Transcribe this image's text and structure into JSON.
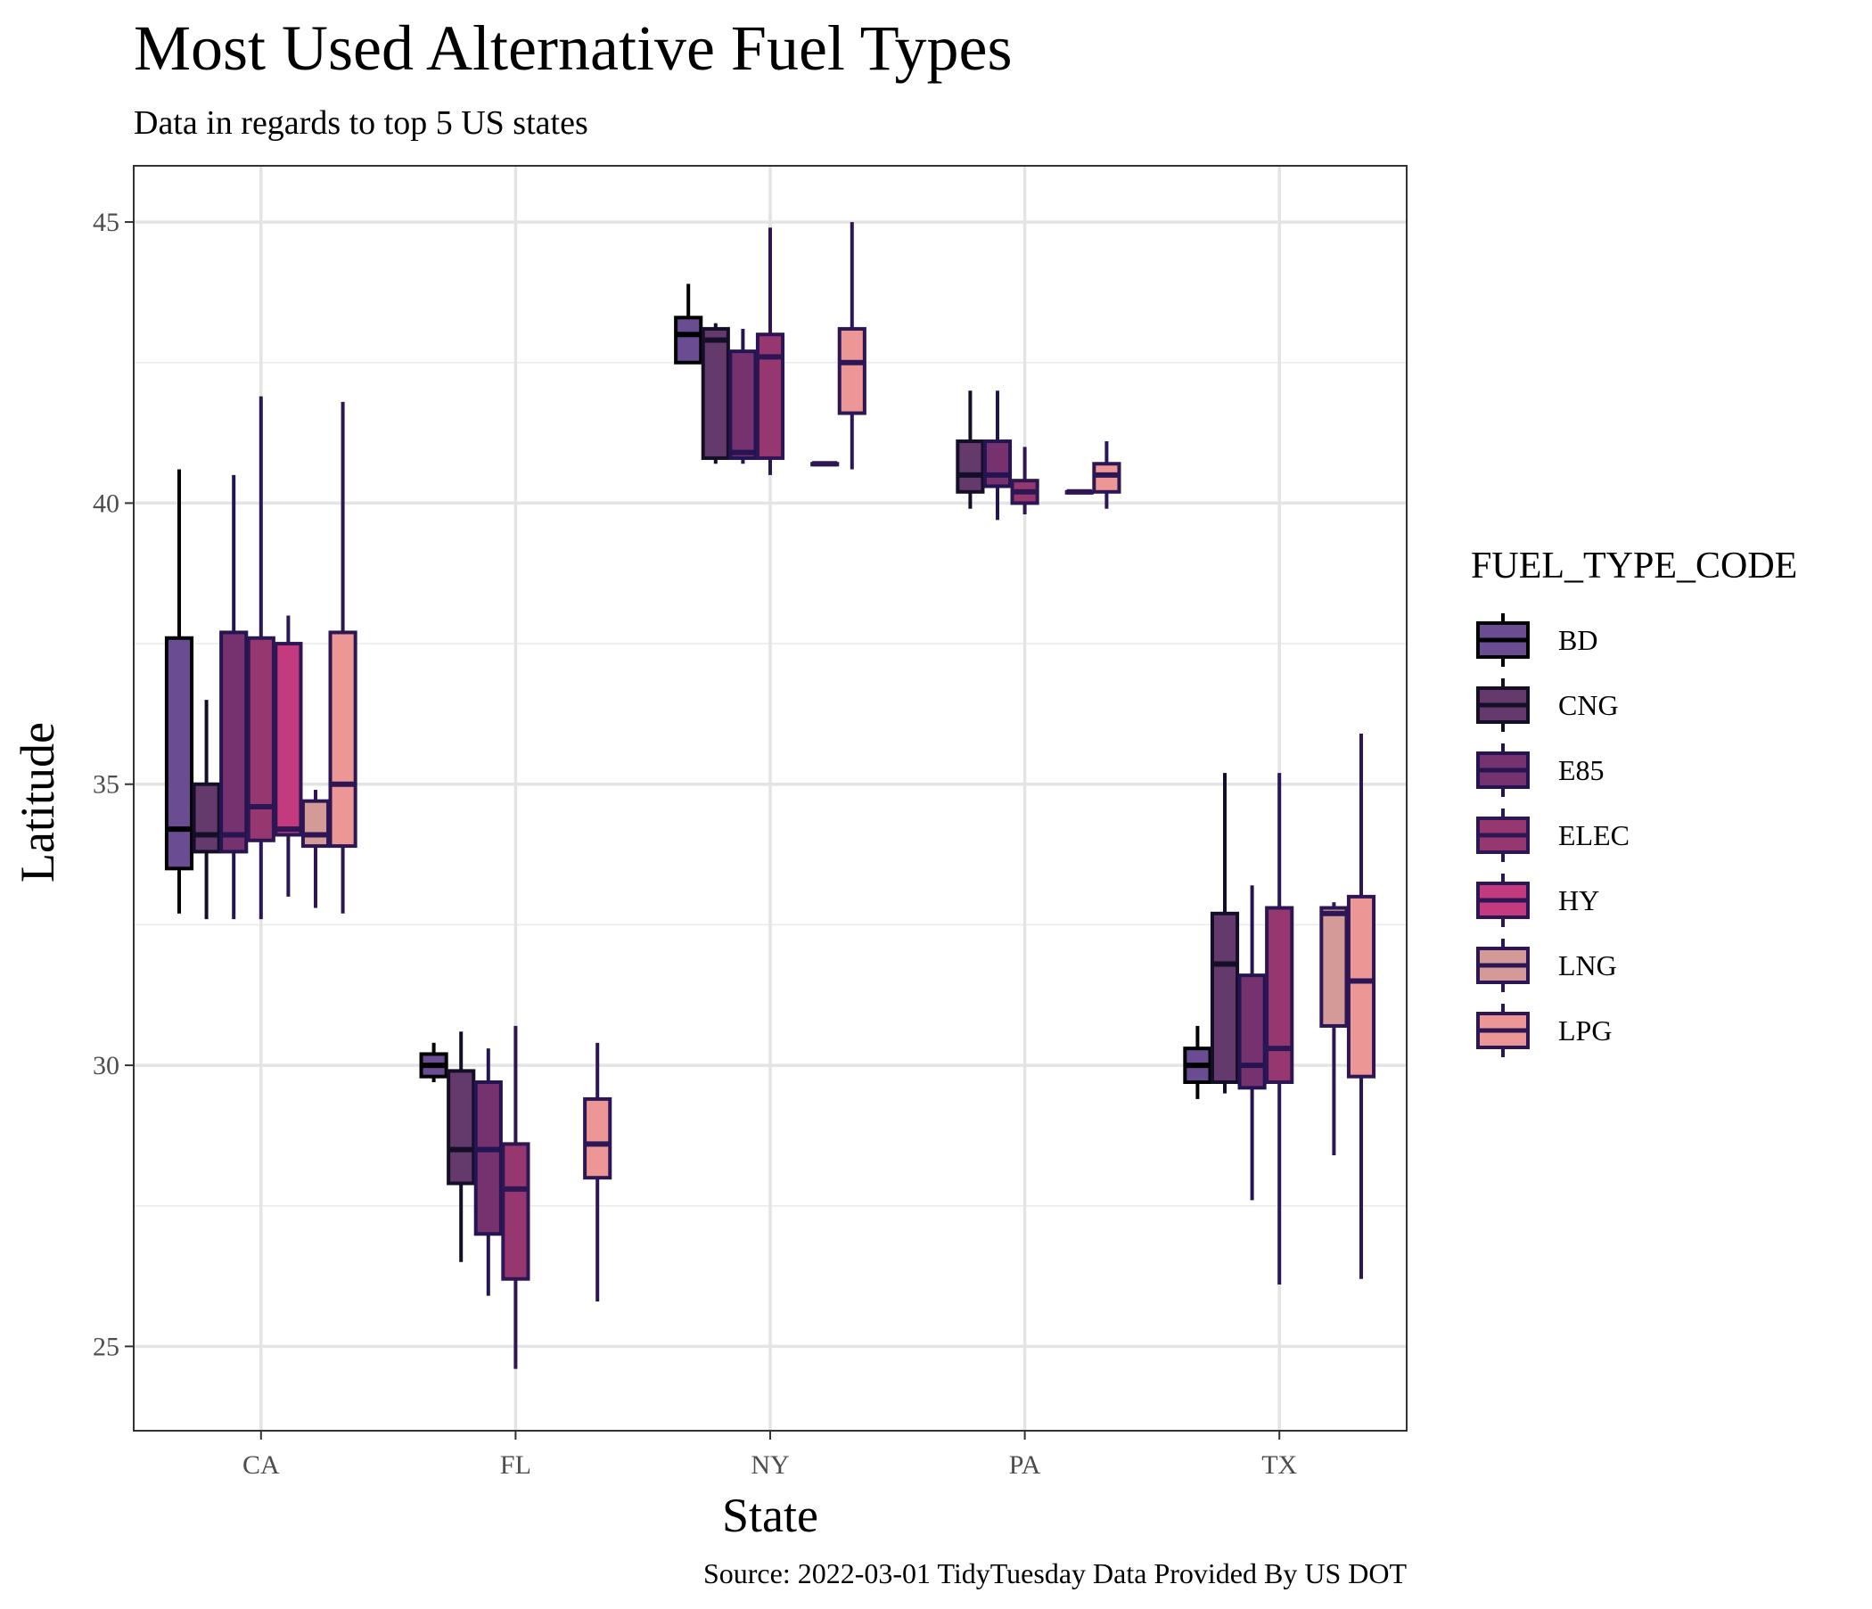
{
  "chart_data": {
    "type": "boxplot",
    "title": "Most Used Alternative Fuel Types",
    "subtitle": "Data in regards to top 5 US states",
    "caption": "Source: 2022-03-01 TidyTuesday Data Provided By US DOT",
    "xlabel": "State",
    "ylabel": "Latitude",
    "ylim": [
      23.5,
      46.0
    ],
    "y_ticks": [
      25,
      30,
      35,
      40,
      45
    ],
    "grid": true,
    "legend_position": "right",
    "legend_title": "FUEL_TYPE_CODE",
    "categories": [
      "CA",
      "FL",
      "NY",
      "PA",
      "TX"
    ],
    "series": [
      {
        "name": "BD",
        "fill": "#6A4C93",
        "stroke": "#000000",
        "boxes": [
          {
            "category": "CA",
            "min": 32.7,
            "q1": 33.5,
            "median": 34.2,
            "q3": 37.6,
            "max": 40.6
          },
          {
            "category": "FL",
            "min": 29.7,
            "q1": 29.8,
            "median": 30.0,
            "q3": 30.2,
            "max": 30.4
          },
          {
            "category": "NY",
            "min": 42.5,
            "q1": 42.5,
            "median": 43.0,
            "q3": 43.3,
            "max": 43.9
          },
          {
            "category": "TX",
            "min": 29.4,
            "q1": 29.7,
            "median": 30.0,
            "q3": 30.3,
            "max": 30.7
          }
        ]
      },
      {
        "name": "CNG",
        "fill": "#633A6B",
        "stroke": "#140E27",
        "boxes": [
          {
            "category": "CA",
            "min": 32.6,
            "q1": 33.8,
            "median": 34.1,
            "q3": 35.0,
            "max": 36.5
          },
          {
            "category": "FL",
            "min": 26.5,
            "q1": 27.9,
            "median": 28.5,
            "q3": 29.9,
            "max": 30.6
          },
          {
            "category": "NY",
            "min": 40.7,
            "q1": 40.8,
            "median": 42.9,
            "q3": 43.1,
            "max": 43.2
          },
          {
            "category": "PA",
            "min": 39.9,
            "q1": 40.2,
            "median": 40.5,
            "q3": 41.1,
            "max": 42.0
          },
          {
            "category": "TX",
            "min": 29.5,
            "q1": 29.7,
            "median": 31.8,
            "q3": 32.7,
            "max": 35.2
          }
        ]
      },
      {
        "name": "E85",
        "fill": "#75326E",
        "stroke": "#241452",
        "boxes": [
          {
            "category": "CA",
            "min": 32.6,
            "q1": 33.8,
            "median": 34.1,
            "q3": 37.7,
            "max": 40.5
          },
          {
            "category": "FL",
            "min": 25.9,
            "q1": 27.0,
            "median": 28.5,
            "q3": 29.7,
            "max": 30.3
          },
          {
            "category": "NY",
            "min": 40.7,
            "q1": 40.8,
            "median": 40.9,
            "q3": 42.7,
            "max": 43.1
          },
          {
            "category": "PA",
            "min": 39.7,
            "q1": 40.3,
            "median": 40.5,
            "q3": 41.1,
            "max": 42.0
          },
          {
            "category": "TX",
            "min": 27.6,
            "q1": 29.6,
            "median": 30.0,
            "q3": 31.6,
            "max": 33.2
          }
        ]
      },
      {
        "name": "ELEC",
        "fill": "#96386F",
        "stroke": "#2C1654",
        "boxes": [
          {
            "category": "CA",
            "min": 32.6,
            "q1": 34.0,
            "median": 34.6,
            "q3": 37.6,
            "max": 41.9
          },
          {
            "category": "FL",
            "min": 24.6,
            "q1": 26.2,
            "median": 27.8,
            "q3": 28.6,
            "max": 30.7
          },
          {
            "category": "NY",
            "min": 40.5,
            "q1": 40.8,
            "median": 42.6,
            "q3": 43.0,
            "max": 44.9
          },
          {
            "category": "PA",
            "min": 39.8,
            "q1": 40.0,
            "median": 40.2,
            "q3": 40.4,
            "max": 41.0
          },
          {
            "category": "TX",
            "min": 26.1,
            "q1": 29.7,
            "median": 30.3,
            "q3": 32.8,
            "max": 35.2
          }
        ]
      },
      {
        "name": "HY",
        "fill": "#C43A7E",
        "stroke": "#2C1654",
        "boxes": [
          {
            "category": "CA",
            "min": 33.0,
            "q1": 34.1,
            "median": 34.2,
            "q3": 37.5,
            "max": 38.0
          }
        ]
      },
      {
        "name": "LNG",
        "fill": "#D39A98",
        "stroke": "#2C1654",
        "boxes": [
          {
            "category": "CA",
            "min": 32.8,
            "q1": 33.9,
            "median": 34.1,
            "q3": 34.7,
            "max": 34.9
          },
          {
            "category": "NY",
            "min": 40.7,
            "q1": 40.7,
            "median": 40.7,
            "q3": 40.7,
            "max": 40.7
          },
          {
            "category": "PA",
            "min": 40.2,
            "q1": 40.2,
            "median": 40.2,
            "q3": 40.2,
            "max": 40.2
          },
          {
            "category": "TX",
            "min": 28.4,
            "q1": 30.7,
            "median": 32.7,
            "q3": 32.8,
            "max": 32.9
          }
        ]
      },
      {
        "name": "LPG",
        "fill": "#EC9696",
        "stroke": "#2C1654",
        "boxes": [
          {
            "category": "CA",
            "min": 32.7,
            "q1": 33.9,
            "median": 35.0,
            "q3": 37.7,
            "max": 41.8
          },
          {
            "category": "FL",
            "min": 25.8,
            "q1": 28.0,
            "median": 28.6,
            "q3": 29.4,
            "max": 30.4
          },
          {
            "category": "NY",
            "min": 40.6,
            "q1": 41.6,
            "median": 42.5,
            "q3": 43.1,
            "max": 45.0
          },
          {
            "category": "PA",
            "min": 39.9,
            "q1": 40.2,
            "median": 40.5,
            "q3": 40.7,
            "max": 41.1
          },
          {
            "category": "TX",
            "min": 26.2,
            "q1": 29.8,
            "median": 31.5,
            "q3": 33.0,
            "max": 35.9
          }
        ]
      }
    ]
  }
}
